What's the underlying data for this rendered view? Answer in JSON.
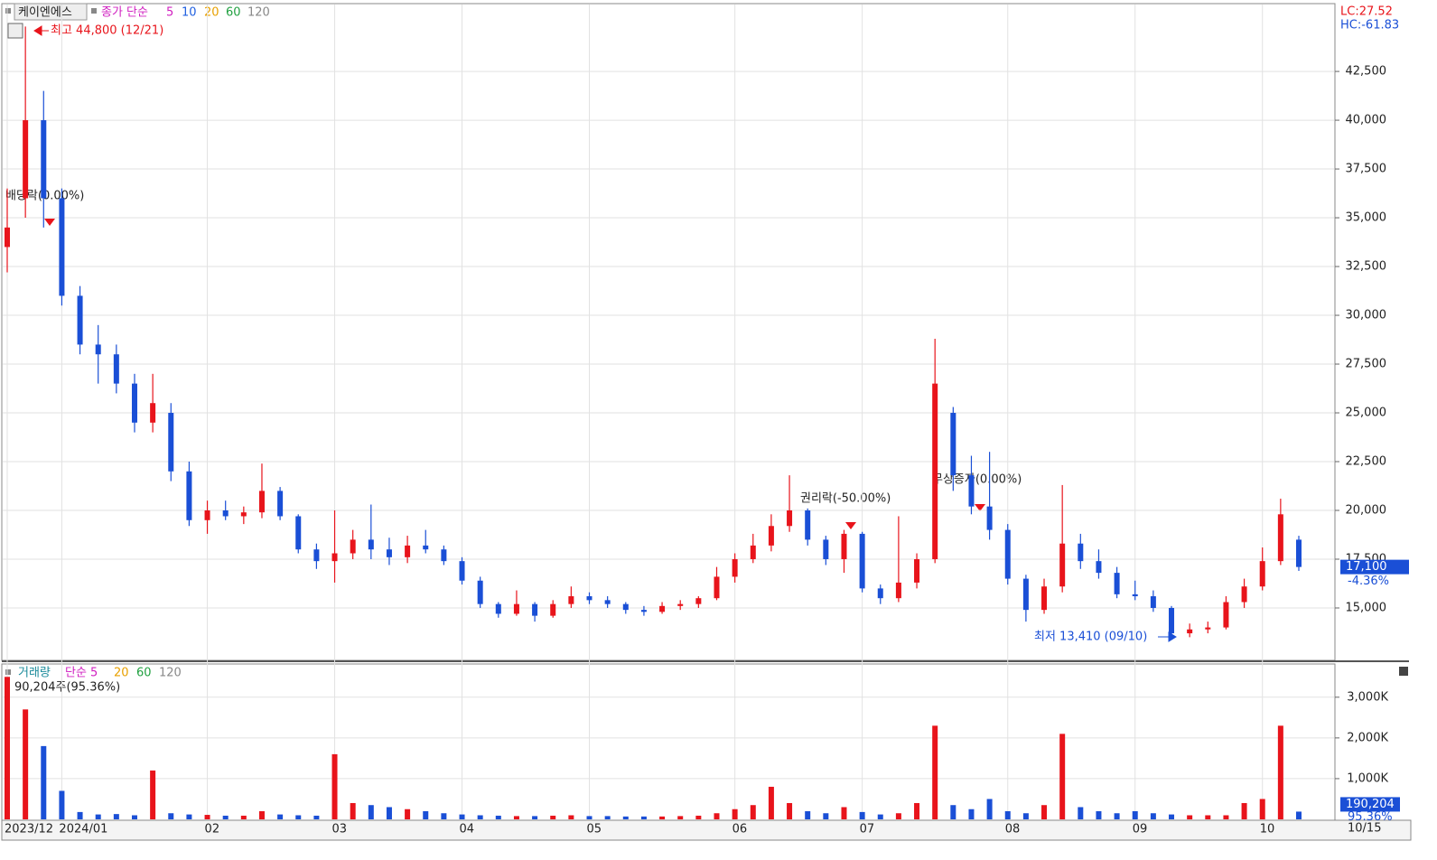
{
  "header": {
    "name": "케이엔에스",
    "ma_label": "종가 단순",
    "ma_periods": [
      "5",
      "10",
      "20",
      "60",
      "120"
    ],
    "lc": "LC:27.52",
    "hc": "HC:-61.83",
    "date_label": "10/15"
  },
  "annotations": {
    "high": "최고 44,800 (12/21)",
    "low": "최저 13,410 (09/10)",
    "dividend": "배당락(0.00%)",
    "rights": "권리락(-50.00%)",
    "bonus": "무상증자(0.00%)"
  },
  "chart_data": [
    {
      "type": "candlestick",
      "categories": [
        "2023/12",
        null,
        null,
        "2024/01",
        null,
        null,
        null,
        null,
        null,
        null,
        null,
        "02",
        null,
        null,
        null,
        null,
        null,
        null,
        "03",
        null,
        null,
        null,
        null,
        null,
        null,
        "04",
        null,
        null,
        null,
        null,
        null,
        null,
        "05",
        null,
        null,
        null,
        null,
        null,
        null,
        null,
        "06",
        null,
        null,
        null,
        null,
        null,
        null,
        "07",
        null,
        null,
        null,
        null,
        null,
        null,
        null,
        "08",
        null,
        null,
        null,
        null,
        null,
        null,
        "09",
        null,
        null,
        null,
        null,
        null,
        null,
        "10",
        null,
        null
      ],
      "open": [
        33500,
        36000,
        40000,
        36000,
        31000,
        28500,
        28000,
        26500,
        24500,
        25000,
        22000,
        19500,
        20000,
        19700,
        19900,
        21000,
        19700,
        18000,
        17400,
        17800,
        18500,
        18000,
        17600,
        18200,
        18000,
        17400,
        16400,
        15200,
        14700,
        15200,
        14600,
        15200,
        15600,
        15400,
        15200,
        14900,
        14800,
        15100,
        15200,
        15500,
        16600,
        17500,
        18200,
        19200,
        20000,
        18500,
        17500,
        18800,
        16000,
        15500,
        16300,
        17500,
        25000,
        21800,
        20200,
        19000,
        16500,
        14900,
        16100,
        18300,
        17400,
        16800,
        15700,
        15600,
        15000,
        13700,
        13900,
        14000,
        15300,
        16100,
        17400,
        18500
      ],
      "high": [
        36500,
        44800,
        41500,
        36500,
        31500,
        29500,
        28500,
        27000,
        27000,
        25500,
        22500,
        20500,
        20500,
        20200,
        22400,
        21200,
        19800,
        18300,
        20000,
        19000,
        20300,
        18600,
        18700,
        19000,
        18200,
        17600,
        16600,
        15300,
        15900,
        15300,
        15400,
        16100,
        15800,
        15600,
        15300,
        15100,
        15300,
        15400,
        15600,
        17100,
        17800,
        18800,
        19800,
        21800,
        20100,
        18700,
        19000,
        18900,
        16200,
        19700,
        17800,
        28800,
        25300,
        22800,
        23000,
        19300,
        16700,
        16500,
        21300,
        18800,
        18000,
        17100,
        16400,
        15900,
        15100,
        14200,
        14300,
        15600,
        16500,
        18100,
        20600,
        18700
      ],
      "low": [
        32200,
        35000,
        34500,
        30500,
        28000,
        26500,
        26000,
        24000,
        24000,
        21500,
        19200,
        18800,
        19500,
        19300,
        19600,
        19500,
        17800,
        17000,
        16300,
        17500,
        17500,
        17200,
        17300,
        17800,
        17200,
        16200,
        15000,
        14500,
        14600,
        14300,
        14500,
        15000,
        15200,
        15000,
        14700,
        14600,
        14700,
        14900,
        15000,
        15400,
        16300,
        17300,
        17900,
        18900,
        18200,
        17200,
        16800,
        15800,
        15200,
        15300,
        16000,
        17300,
        21000,
        19800,
        18500,
        16200,
        14300,
        14700,
        15800,
        17000,
        16500,
        15500,
        15400,
        14800,
        13410,
        13500,
        13700,
        13900,
        15000,
        15900,
        17200,
        16900
      ],
      "close": [
        34500,
        40000,
        36000,
        31000,
        28500,
        28000,
        26500,
        24500,
        25500,
        22000,
        19500,
        20000,
        19700,
        19900,
        21000,
        19700,
        18000,
        17400,
        17800,
        18500,
        18000,
        17600,
        18200,
        18000,
        17400,
        16400,
        15200,
        14700,
        15200,
        14600,
        15200,
        15600,
        15400,
        15200,
        14900,
        14800,
        15100,
        15200,
        15500,
        16600,
        17500,
        18200,
        19200,
        20000,
        18500,
        17500,
        18800,
        16000,
        15500,
        16300,
        17500,
        26500,
        21800,
        20200,
        19000,
        16500,
        14900,
        16100,
        18300,
        17400,
        16800,
        15700,
        15600,
        15000,
        13700,
        13900,
        14000,
        15300,
        16100,
        17400,
        19800,
        17100
      ],
      "up_color": "#e8141b",
      "down_color": "#1a4fd6",
      "ylim": [
        12360,
        45930
      ],
      "yticks": [
        {
          "value": 15000,
          "label": "15,000"
        },
        {
          "value": 17500,
          "label": "17,500"
        },
        {
          "value": 20000,
          "label": "20,000"
        },
        {
          "value": 22500,
          "label": "22,500"
        },
        {
          "value": 25000,
          "label": "25,000"
        },
        {
          "value": 27500,
          "label": "27,500"
        },
        {
          "value": 30000,
          "label": "30,000"
        },
        {
          "value": 32500,
          "label": "32,500"
        },
        {
          "value": 35000,
          "label": "35,000"
        },
        {
          "value": 37500,
          "label": "37,500"
        },
        {
          "value": 40000,
          "label": "40,000"
        },
        {
          "value": 42500,
          "label": "42,500"
        }
      ],
      "last_label": "17,100",
      "change_label": "-4.36%",
      "grid": true
    },
    {
      "type": "bar",
      "title": "거래량",
      "ma_label": "단순 5",
      "ma_periods": [
        "20",
        "60",
        "120"
      ],
      "first_label": "90,204주(95.36%)",
      "values": [
        3500,
        2700,
        1800,
        700,
        180,
        120,
        130,
        100,
        1200,
        150,
        120,
        110,
        90,
        90,
        200,
        120,
        100,
        90,
        1600,
        400,
        350,
        300,
        250,
        200,
        150,
        120,
        100,
        90,
        80,
        80,
        90,
        100,
        80,
        80,
        70,
        70,
        70,
        80,
        90,
        150,
        250,
        350,
        800,
        400,
        200,
        150,
        300,
        180,
        120,
        150,
        400,
        2300,
        350,
        250,
        500,
        200,
        150,
        350,
        2100,
        300,
        200,
        150,
        200,
        150,
        120,
        100,
        100,
        100,
        400,
        500,
        2300,
        190
      ],
      "ylim": [
        0,
        3750
      ],
      "yticks": [
        {
          "value": 1000,
          "label": "1,000K"
        },
        {
          "value": 2000,
          "label": "2,000K"
        },
        {
          "value": 3000,
          "label": "3,000K"
        }
      ],
      "last_label": "190,204",
      "ratio_label": "95.36%",
      "grid": true
    }
  ]
}
